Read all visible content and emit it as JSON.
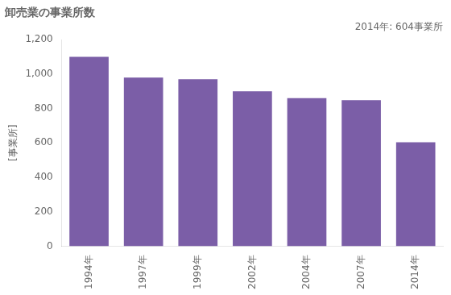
{
  "chart_data": {
    "type": "bar",
    "title": "卸売業の事業所数",
    "ylabel": "[事業所]",
    "annotation": "2014年: 604事業所",
    "categories": [
      "1994年",
      "1997年",
      "1999年",
      "2002年",
      "2004年",
      "2007年",
      "2014年"
    ],
    "values": [
      1100,
      980,
      970,
      900,
      860,
      848,
      604
    ],
    "color": "#7B5EA7",
    "ylim": [
      0,
      1200
    ],
    "yticks": [
      0,
      200,
      400,
      600,
      800,
      {
        "value": 1000,
        "label": "1,000"
      },
      {
        "value": 1200,
        "label": "1,200"
      }
    ],
    "grid": false
  }
}
